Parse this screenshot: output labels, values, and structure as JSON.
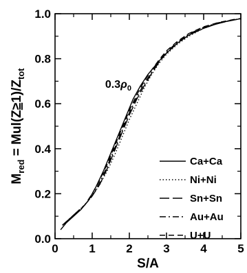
{
  "chart_data": {
    "type": "line",
    "xlabel": "S/A",
    "ylabel_parts": [
      "M",
      "red",
      " = Mul(Z",
      "≥",
      "1)/Z",
      "tot"
    ],
    "xlim": [
      0,
      5
    ],
    "ylim": [
      0,
      1
    ],
    "x_ticks": [
      "0",
      "1",
      "2",
      "3",
      "4",
      "5"
    ],
    "y_ticks": [
      "0.0",
      "0.2",
      "0.4",
      "0.6",
      "0.8",
      "1.0"
    ],
    "annotation": {
      "text": "0.3",
      "rho": "ρ",
      "sub": "0",
      "x": 1.35,
      "y": 0.67
    },
    "grid": false,
    "legend_position": "bottom-right",
    "series": [
      {
        "name": "Ca+Ca",
        "dash": "solid",
        "x": [
          0.15,
          0.3,
          0.5,
          0.7,
          0.9,
          1.1,
          1.3,
          1.5,
          1.7,
          1.9,
          2.1,
          2.3,
          2.5,
          2.8,
          3.0,
          3.3,
          3.6,
          4.0,
          4.3,
          4.6,
          5.0
        ],
        "y": [
          0.04,
          0.07,
          0.1,
          0.13,
          0.17,
          0.23,
          0.3,
          0.38,
          0.46,
          0.54,
          0.62,
          0.68,
          0.73,
          0.79,
          0.825,
          0.87,
          0.905,
          0.935,
          0.952,
          0.965,
          0.978
        ]
      },
      {
        "name": "Ni+Ni",
        "dash": "dotted",
        "x": [
          0.2,
          0.4,
          0.6,
          0.8,
          1.0,
          1.2,
          1.4,
          1.6,
          1.8,
          2.0,
          2.2,
          2.4,
          2.6,
          2.8,
          3.0,
          3.3,
          3.6,
          4.0,
          4.4,
          4.8,
          5.0
        ],
        "y": [
          0.06,
          0.09,
          0.12,
          0.15,
          0.19,
          0.24,
          0.3,
          0.37,
          0.45,
          0.53,
          0.6,
          0.67,
          0.73,
          0.78,
          0.82,
          0.865,
          0.9,
          0.935,
          0.958,
          0.972,
          0.978
        ]
      },
      {
        "name": "Sn+Sn",
        "dash": "long-dash",
        "x": [
          0.2,
          0.4,
          0.6,
          0.8,
          1.0,
          1.2,
          1.4,
          1.6,
          1.8,
          2.0,
          2.2,
          2.4,
          2.6,
          2.8,
          3.0,
          3.3,
          3.6,
          4.0,
          4.4,
          4.8,
          5.0
        ],
        "y": [
          0.06,
          0.09,
          0.12,
          0.15,
          0.19,
          0.24,
          0.31,
          0.39,
          0.47,
          0.55,
          0.62,
          0.68,
          0.735,
          0.785,
          0.825,
          0.87,
          0.905,
          0.938,
          0.958,
          0.972,
          0.978
        ]
      },
      {
        "name": "Au+Au",
        "dash": "dash-dot",
        "x": [
          0.2,
          0.4,
          0.6,
          0.8,
          1.0,
          1.2,
          1.4,
          1.6,
          1.8,
          2.0,
          2.2,
          2.4,
          2.6,
          2.8,
          3.0,
          3.3,
          3.6,
          4.0,
          4.4,
          4.8,
          5.0
        ],
        "y": [
          0.06,
          0.09,
          0.12,
          0.15,
          0.19,
          0.25,
          0.32,
          0.4,
          0.48,
          0.56,
          0.63,
          0.69,
          0.74,
          0.79,
          0.83,
          0.875,
          0.91,
          0.94,
          0.96,
          0.973,
          0.978
        ]
      },
      {
        "name": "U+U",
        "dash": "dash",
        "x": [
          0.2,
          0.4,
          0.6,
          0.8,
          1.0,
          1.2,
          1.4,
          1.6,
          1.8,
          2.0,
          2.2,
          2.4,
          2.6,
          2.8,
          3.0,
          3.3,
          3.6,
          4.0,
          4.4,
          4.8,
          5.0
        ],
        "y": [
          0.06,
          0.09,
          0.12,
          0.15,
          0.2,
          0.26,
          0.33,
          0.41,
          0.49,
          0.57,
          0.64,
          0.7,
          0.75,
          0.795,
          0.835,
          0.878,
          0.912,
          0.942,
          0.961,
          0.974,
          0.979
        ]
      }
    ]
  }
}
